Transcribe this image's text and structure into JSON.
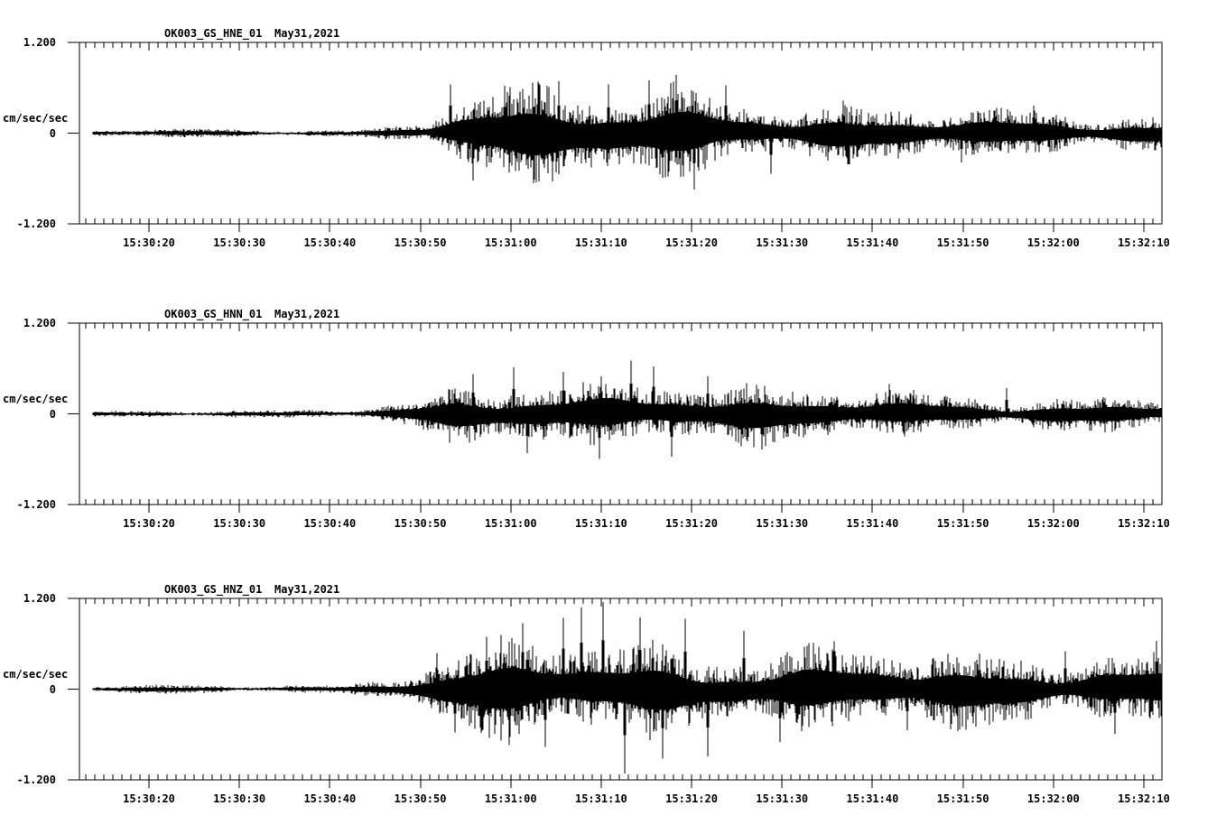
{
  "page": {
    "background": "#ffffff",
    "ink_color": "#000000"
  },
  "chart_data": {
    "type": "line",
    "kind": "seismogram-three-component",
    "station": "OK003",
    "network": "GS",
    "location_code": "01",
    "date_label": "May31,2021",
    "ylabel": "cm/sec/sec",
    "y_ticks": [
      "1.200",
      "0",
      "-1.200"
    ],
    "ylim": [
      -1.2,
      1.2
    ],
    "grid": false,
    "legend": "none",
    "x_axis": {
      "trace_start_time": "15:30:14",
      "trace_end_time": "15:32:12",
      "major_tick_interval_seconds": 10,
      "minor_tick_interval_seconds": 1,
      "tick_labels": [
        "15:30:20",
        "15:30:30",
        "15:30:40",
        "15:30:50",
        "15:31:00",
        "15:31:10",
        "15:31:20",
        "15:31:30",
        "15:31:40",
        "15:31:50",
        "15:32:00",
        "15:32:10"
      ]
    },
    "panels": [
      {
        "title": "OK003_GS_HNE_01",
        "channel": "HNE",
        "envelope": {
          "t_seconds": [
            0,
            10,
            14,
            20,
            28,
            31,
            34,
            37,
            40,
            44,
            50,
            56,
            62,
            67,
            72,
            78,
            85,
            95,
            105,
            112,
            118
          ],
          "amplitude": [
            0.035,
            0.045,
            0.05,
            0.04,
            0.04,
            0.05,
            0.08,
            0.13,
            0.33,
            0.42,
            0.45,
            0.48,
            0.54,
            0.5,
            0.4,
            0.33,
            0.28,
            0.24,
            0.22,
            0.22,
            0.24
          ]
        },
        "notable_spikes": [
          {
            "t": 39.5,
            "v": 0.62
          },
          {
            "t": 42,
            "v": -0.65
          },
          {
            "t": 45.5,
            "v": 0.62
          },
          {
            "t": 51.5,
            "v": 0.72
          },
          {
            "t": 57,
            "v": 0.68
          },
          {
            "t": 61.5,
            "v": 0.7
          },
          {
            "t": 63,
            "v": -0.6
          },
          {
            "t": 64.5,
            "v": 0.75
          },
          {
            "t": 66.5,
            "v": -0.78
          },
          {
            "t": 70,
            "v": 0.6
          },
          {
            "t": 75,
            "v": -0.55
          },
          {
            "t": 83,
            "v": 0.45
          },
          {
            "t": 96,
            "v": -0.4
          },
          {
            "t": 104,
            "v": 0.35
          }
        ]
      },
      {
        "title": "OK003_GS_HNN_01",
        "channel": "HNN",
        "envelope": {
          "t_seconds": [
            0,
            12,
            20,
            28,
            31,
            34,
            37,
            40,
            44,
            50,
            55,
            60,
            65,
            70,
            76,
            84,
            92,
            100,
            110,
            118
          ],
          "amplitude": [
            0.035,
            0.045,
            0.04,
            0.04,
            0.06,
            0.1,
            0.16,
            0.26,
            0.34,
            0.4,
            0.36,
            0.42,
            0.38,
            0.3,
            0.27,
            0.24,
            0.21,
            0.2,
            0.2,
            0.22
          ]
        },
        "notable_spikes": [
          {
            "t": 42,
            "v": 0.55
          },
          {
            "t": 46.5,
            "v": 0.64
          },
          {
            "t": 48,
            "v": -0.5
          },
          {
            "t": 52,
            "v": 0.55
          },
          {
            "t": 56,
            "v": -0.62
          },
          {
            "t": 59.5,
            "v": 0.67
          },
          {
            "t": 62,
            "v": 0.6
          },
          {
            "t": 64,
            "v": -0.58
          },
          {
            "t": 68,
            "v": 0.5
          },
          {
            "t": 74,
            "v": -0.45
          },
          {
            "t": 88,
            "v": 0.38
          },
          {
            "t": 101,
            "v": 0.35
          }
        ]
      },
      {
        "title": "OK003_GS_HNZ_01",
        "channel": "HNZ",
        "envelope": {
          "t_seconds": [
            0,
            12,
            20,
            27,
            30,
            33,
            36,
            39,
            43,
            48,
            53,
            57,
            61,
            66,
            71,
            77,
            85,
            93,
            101,
            108,
            113,
            118
          ],
          "amplitude": [
            0.04,
            0.05,
            0.045,
            0.045,
            0.07,
            0.12,
            0.2,
            0.3,
            0.42,
            0.48,
            0.52,
            0.58,
            0.52,
            0.54,
            0.48,
            0.44,
            0.4,
            0.36,
            0.35,
            0.38,
            0.4,
            0.42
          ]
        },
        "notable_spikes": [
          {
            "t": 38,
            "v": 0.5
          },
          {
            "t": 40,
            "v": -0.55
          },
          {
            "t": 43.5,
            "v": 0.7
          },
          {
            "t": 46,
            "v": -0.75
          },
          {
            "t": 47.5,
            "v": 0.85
          },
          {
            "t": 50,
            "v": -0.8
          },
          {
            "t": 52,
            "v": 0.9
          },
          {
            "t": 54,
            "v": 1.04
          },
          {
            "t": 56.4,
            "v": 1.12
          },
          {
            "t": 58.8,
            "v": -1.13
          },
          {
            "t": 60.5,
            "v": 0.95
          },
          {
            "t": 63,
            "v": -0.9
          },
          {
            "t": 65.5,
            "v": 0.97
          },
          {
            "t": 68,
            "v": -0.85
          },
          {
            "t": 72,
            "v": 0.8
          },
          {
            "t": 76,
            "v": -0.7
          },
          {
            "t": 82,
            "v": 0.6
          },
          {
            "t": 90,
            "v": -0.55
          },
          {
            "t": 98,
            "v": 0.5
          },
          {
            "t": 107.5,
            "v": 0.5
          },
          {
            "t": 113,
            "v": -0.62
          },
          {
            "t": 117.6,
            "v": 0.61
          }
        ]
      }
    ]
  }
}
